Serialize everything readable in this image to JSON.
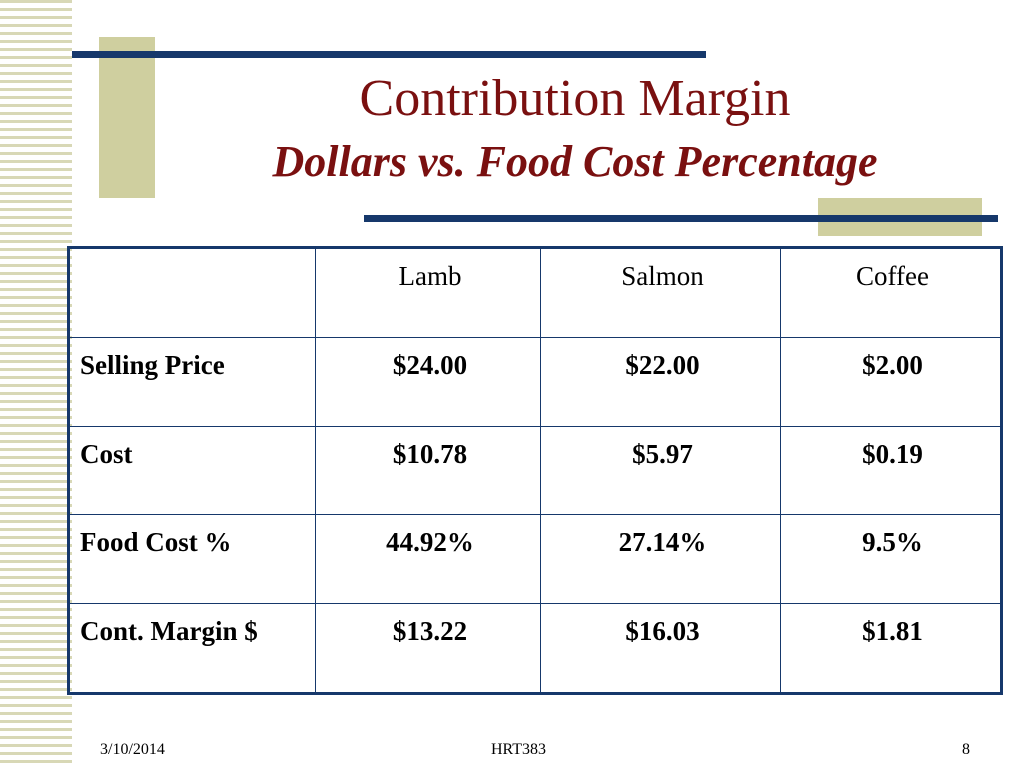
{
  "slide": {
    "title": "Contribution Margin",
    "subtitle": "Dollars vs. Food Cost Percentage"
  },
  "table": {
    "columns": [
      "",
      "Lamb",
      "Salmon",
      "Coffee"
    ],
    "rows": [
      {
        "label": "Selling Price",
        "values": [
          "$24.00",
          "$22.00",
          "$2.00"
        ]
      },
      {
        "label": "Cost",
        "values": [
          "$10.78",
          "$5.97",
          "$0.19"
        ]
      },
      {
        "label": "Food Cost %",
        "values": [
          "44.92%",
          "27.14%",
          "9.5%"
        ]
      },
      {
        "label": "Cont. Margin $",
        "values": [
          "$13.22",
          "$16.03",
          "$1.81"
        ]
      }
    ]
  },
  "footer": {
    "date": "3/10/2014",
    "course": "HRT383",
    "page_number": "8"
  },
  "colors": {
    "title": "#7a1010",
    "accent_line": "#16386b",
    "accent_block": "#cfcf9f",
    "stripes": "#d8d8b6"
  }
}
